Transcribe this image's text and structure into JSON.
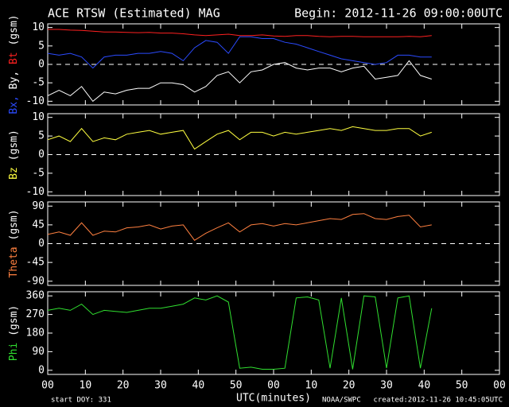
{
  "chart_data": [
    {
      "type": "line",
      "title": "ACE RTSW (Estimated) MAG",
      "subtitle": "Begin: 2012-11-26 09:00:00UTC",
      "ylabel_parts": [
        "Bx,",
        "By,",
        "Bt",
        "(gsm)"
      ],
      "x": [
        0,
        3,
        6,
        9,
        12,
        15,
        18,
        21,
        24,
        27,
        30,
        33,
        36,
        39,
        42,
        45,
        48,
        51,
        54,
        57,
        60,
        63,
        66,
        69,
        72,
        75,
        78,
        81,
        84,
        87,
        90,
        93,
        96,
        99,
        102
      ],
      "xlim": [
        0,
        120
      ],
      "ylim": [
        -11,
        11
      ],
      "yticks": [
        10,
        5,
        0,
        -5,
        -10
      ],
      "zero_line": true,
      "series": [
        {
          "name": "Bx",
          "color": "#2b4bff",
          "values": [
            3,
            2.5,
            3,
            2,
            -1,
            2,
            2.5,
            2.5,
            3,
            3,
            3.5,
            3,
            1,
            4.5,
            6.5,
            6,
            3,
            7.5,
            7.5,
            7,
            7,
            6,
            5.5,
            4.5,
            3.5,
            2.5,
            1.5,
            1,
            0.5,
            0,
            0.5,
            2.5,
            2.5,
            2,
            2
          ]
        },
        {
          "name": "By",
          "color": "#ffffff",
          "values": [
            -8.5,
            -7,
            -8.5,
            -6,
            -10,
            -7.5,
            -8,
            -7,
            -6.5,
            -6.5,
            -5,
            -5,
            -5.5,
            -7.5,
            -6,
            -3,
            -2,
            -5,
            -2,
            -1.5,
            0,
            0.5,
            -1,
            -1.5,
            -1,
            -1,
            -2,
            -1,
            -0.5,
            -4,
            -3.5,
            -3,
            1,
            -3,
            -4
          ]
        },
        {
          "name": "Bt",
          "color": "#ff2020",
          "values": [
            9.5,
            9.5,
            9.3,
            9.2,
            9,
            8.8,
            8.8,
            8.7,
            8.6,
            8.7,
            8.5,
            8.5,
            8.3,
            8,
            7.8,
            8,
            8.2,
            7.8,
            7.8,
            8,
            7.7,
            7.6,
            7.8,
            7.8,
            7.6,
            7.5,
            7.6,
            7.6,
            7.5,
            7.5,
            7.5,
            7.5,
            7.6,
            7.5,
            7.8
          ]
        }
      ]
    },
    {
      "type": "line",
      "ylabel_parts": [
        "Bz",
        "(gsm)"
      ],
      "x": [
        0,
        3,
        6,
        9,
        12,
        15,
        18,
        21,
        24,
        27,
        30,
        33,
        36,
        39,
        42,
        45,
        48,
        51,
        54,
        57,
        60,
        63,
        66,
        69,
        72,
        75,
        78,
        81,
        84,
        87,
        90,
        93,
        96,
        99,
        102
      ],
      "xlim": [
        0,
        120
      ],
      "ylim": [
        -11,
        11
      ],
      "yticks": [
        10,
        5,
        0,
        -5,
        -10
      ],
      "zero_line": true,
      "series": [
        {
          "name": "Bz",
          "color": "#ffff40",
          "values": [
            4,
            5,
            3.5,
            7,
            3.5,
            4.5,
            4,
            5.5,
            6,
            6.5,
            5.5,
            6,
            6.5,
            1.5,
            3.5,
            5.5,
            6.5,
            4,
            6,
            6,
            5,
            6,
            5.5,
            6,
            6.5,
            7,
            6.5,
            7.5,
            7,
            6.5,
            6.5,
            7,
            7,
            5,
            6
          ]
        }
      ]
    },
    {
      "type": "line",
      "ylabel_parts": [
        "Theta",
        "(gsm)"
      ],
      "x": [
        0,
        3,
        6,
        9,
        12,
        15,
        18,
        21,
        24,
        27,
        30,
        33,
        36,
        39,
        42,
        45,
        48,
        51,
        54,
        57,
        60,
        63,
        66,
        69,
        72,
        75,
        78,
        81,
        84,
        87,
        90,
        93,
        96,
        99,
        102
      ],
      "xlim": [
        0,
        120
      ],
      "ylim": [
        -100,
        100
      ],
      "yticks": [
        90,
        45,
        0,
        -45,
        -90
      ],
      "zero_line": true,
      "series": [
        {
          "name": "Theta",
          "color": "#ff8040",
          "values": [
            22,
            28,
            20,
            50,
            20,
            30,
            28,
            38,
            40,
            45,
            35,
            42,
            45,
            8,
            25,
            38,
            50,
            28,
            45,
            48,
            42,
            48,
            45,
            50,
            55,
            60,
            58,
            70,
            72,
            60,
            58,
            65,
            68,
            40,
            45
          ]
        }
      ]
    },
    {
      "type": "line",
      "ylabel_parts": [
        "Phi",
        "(gsm)"
      ],
      "x": [
        0,
        3,
        6,
        9,
        12,
        15,
        18,
        21,
        24,
        27,
        30,
        33,
        36,
        39,
        42,
        45,
        48,
        51,
        54,
        57,
        60,
        63,
        66,
        69,
        72,
        75,
        78,
        81,
        84,
        87,
        90,
        93,
        96,
        99,
        102
      ],
      "xlim": [
        0,
        120
      ],
      "ylim": [
        -20,
        380
      ],
      "yticks": [
        360,
        270,
        180,
        90,
        0
      ],
      "zero_line": false,
      "xticks": [
        {
          "value": 0,
          "label": "00"
        },
        10,
        20,
        30,
        40,
        50,
        {
          "value": 60,
          "label": "00"
        },
        {
          "value": 70,
          "label": "10"
        },
        {
          "value": 80,
          "label": "20"
        },
        {
          "value": 90,
          "label": "30"
        },
        {
          "value": 100,
          "label": "40"
        },
        {
          "value": 110,
          "label": "50"
        },
        {
          "value": 120,
          "label": "00"
        }
      ],
      "xlabel": "UTC(minutes)",
      "footer": [
        "start DOY: 331",
        "NOAA/SWPC",
        "created:2012-11-26 10:45:05UTC"
      ],
      "series": [
        {
          "name": "Phi",
          "color": "#30e030",
          "values": [
            290,
            300,
            290,
            320,
            270,
            290,
            285,
            280,
            290,
            300,
            300,
            310,
            320,
            350,
            340,
            360,
            330,
            10,
            15,
            5,
            5,
            10,
            350,
            355,
            340,
            10,
            350,
            5,
            360,
            355,
            10,
            350,
            360,
            10,
            300
          ]
        }
      ]
    }
  ]
}
